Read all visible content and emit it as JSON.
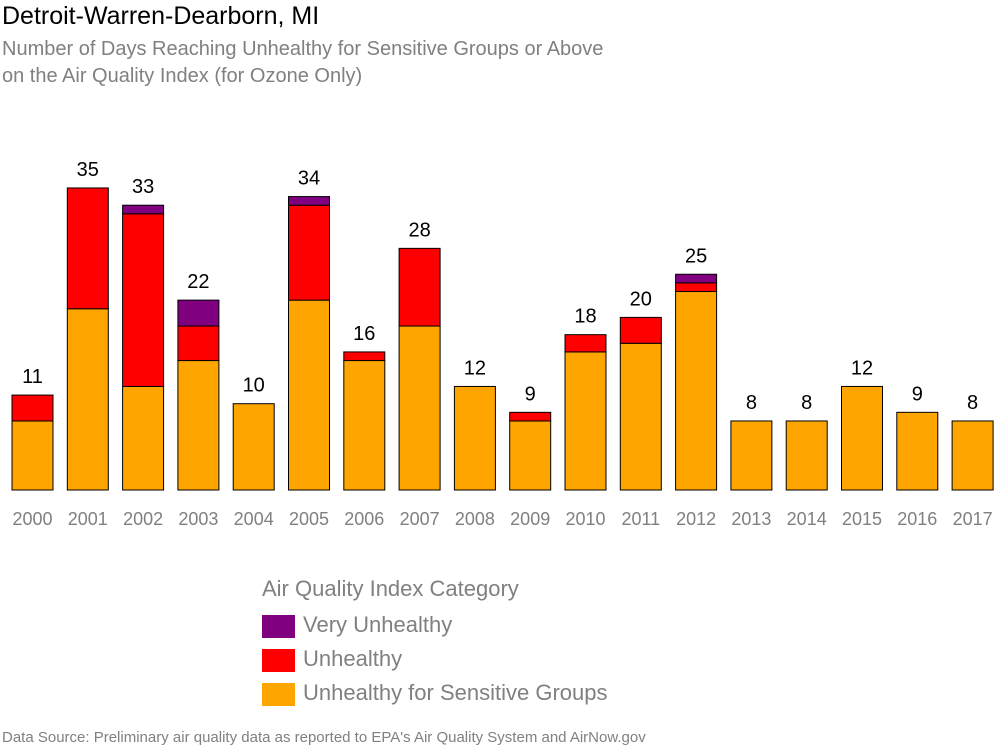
{
  "title": "Detroit-Warren-Dearborn, MI",
  "subtitle_line1": "Number of Days Reaching Unhealthy for Sensitive Groups or Above",
  "subtitle_line2": "on the Air Quality Index (for Ozone Only)",
  "source": "Data Source: Preliminary air quality data as reported to EPA's Air Quality System and AirNow.gov",
  "chart_data": {
    "type": "bar",
    "stacked": true,
    "title": "Detroit-Warren-Dearborn, MI",
    "categories": [
      "2000",
      "2001",
      "2002",
      "2003",
      "2004",
      "2005",
      "2006",
      "2007",
      "2008",
      "2009",
      "2010",
      "2011",
      "2012",
      "2013",
      "2014",
      "2015",
      "2016",
      "2017"
    ],
    "series": [
      {
        "name": "Unhealthy for Sensitive Groups",
        "color": "#FFA500",
        "values": [
          8,
          21,
          12,
          15,
          10,
          22,
          15,
          19,
          12,
          8,
          16,
          17,
          23,
          8,
          8,
          12,
          9,
          8
        ]
      },
      {
        "name": "Unhealthy",
        "color": "#FF0000",
        "values": [
          3,
          14,
          20,
          4,
          0,
          11,
          1,
          9,
          0,
          1,
          2,
          3,
          1,
          0,
          0,
          0,
          0,
          0
        ]
      },
      {
        "name": "Very Unhealthy",
        "color": "#800080",
        "values": [
          0,
          0,
          1,
          3,
          0,
          1,
          0,
          0,
          0,
          0,
          0,
          0,
          1,
          0,
          0,
          0,
          0,
          0
        ]
      }
    ],
    "totals": [
      11,
      35,
      33,
      22,
      10,
      34,
      16,
      28,
      12,
      9,
      18,
      20,
      25,
      8,
      8,
      12,
      9,
      8
    ],
    "ylim": [
      0,
      40
    ],
    "grid": false,
    "legend": {
      "title": "Air Quality Index Category",
      "placement": "bottom",
      "items": [
        {
          "label": "Very Unhealthy",
          "color": "#800080"
        },
        {
          "label": "Unhealthy",
          "color": "#FF0000"
        },
        {
          "label": "Unhealthy for Sensitive Groups",
          "color": "#FFA500"
        }
      ]
    }
  }
}
